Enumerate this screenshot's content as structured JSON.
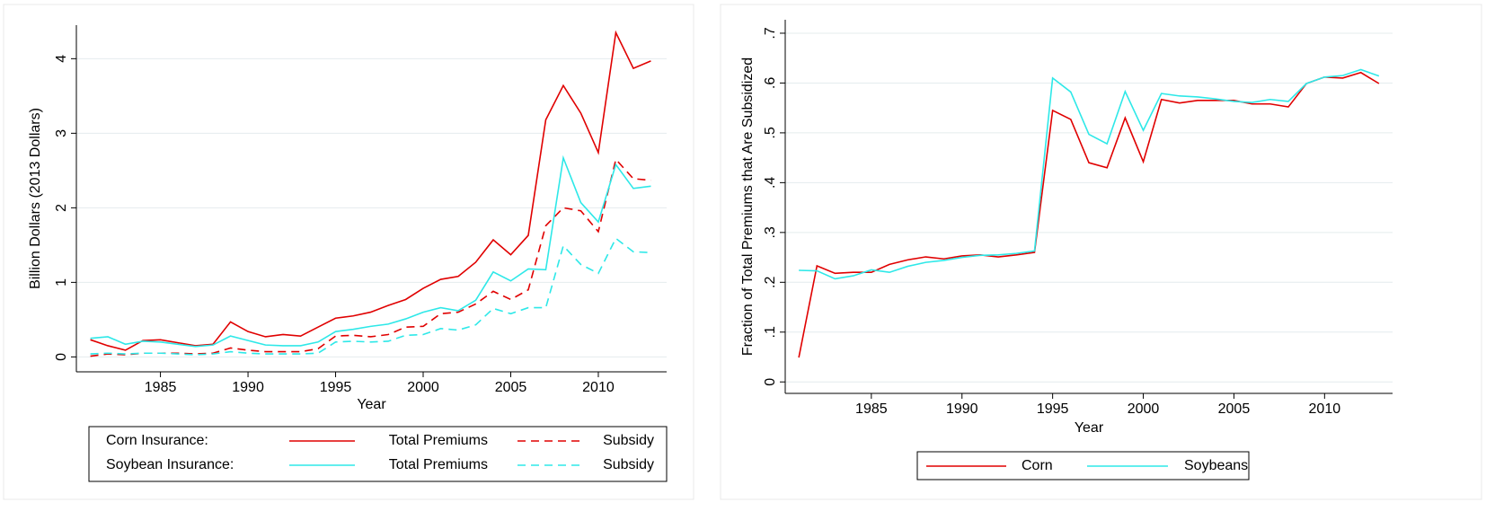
{
  "chart_data": [
    {
      "type": "line",
      "y_label": "Billion Dollars (2013 Dollars)",
      "x_label": "Year",
      "x": [
        1981,
        1982,
        1983,
        1984,
        1985,
        1986,
        1987,
        1988,
        1989,
        1990,
        1991,
        1992,
        1993,
        1994,
        1995,
        1996,
        1997,
        1998,
        1999,
        2000,
        2001,
        2002,
        2003,
        2004,
        2005,
        2006,
        2007,
        2008,
        2009,
        2010,
        2011,
        2012,
        2013
      ],
      "xlim": [
        1980.2,
        2013.9
      ],
      "xticks": [
        1985,
        1990,
        1995,
        2000,
        2005,
        2010
      ],
      "ylim": [
        -0.2,
        4.45
      ],
      "yticks": [
        0,
        1,
        2,
        3,
        4
      ],
      "grid": true,
      "groups": [
        {
          "name": "Corn Insurance:",
          "series": [
            {
              "name": "Total Premiums",
              "color": "#e00000",
              "linestyle": "solid",
              "values": [
                0.23,
                0.15,
                0.09,
                0.22,
                0.23,
                0.19,
                0.15,
                0.17,
                0.47,
                0.34,
                0.27,
                0.3,
                0.28,
                0.4,
                0.52,
                0.55,
                0.6,
                0.69,
                0.77,
                0.92,
                1.04,
                1.08,
                1.27,
                1.57,
                1.37,
                1.63,
                3.18,
                3.64,
                3.27,
                2.74,
                4.35,
                3.87,
                3.97
              ]
            },
            {
              "name": "Subsidy",
              "color": "#e00000",
              "linestyle": "dashed",
              "values": [
                0.01,
                0.04,
                0.03,
                0.05,
                0.05,
                0.05,
                0.04,
                0.05,
                0.12,
                0.09,
                0.07,
                0.07,
                0.07,
                0.11,
                0.28,
                0.29,
                0.27,
                0.3,
                0.4,
                0.41,
                0.58,
                0.6,
                0.71,
                0.88,
                0.77,
                0.9,
                1.76,
                2.0,
                1.96,
                1.68,
                2.65,
                2.39,
                2.37
              ]
            }
          ]
        },
        {
          "name": "Soybean Insurance:",
          "series": [
            {
              "name": "Total Premiums",
              "color": "#2ee8e8",
              "linestyle": "solid",
              "values": [
                0.25,
                0.27,
                0.17,
                0.21,
                0.2,
                0.17,
                0.14,
                0.16,
                0.28,
                0.22,
                0.16,
                0.15,
                0.15,
                0.2,
                0.34,
                0.37,
                0.41,
                0.44,
                0.51,
                0.6,
                0.66,
                0.62,
                0.76,
                1.14,
                1.02,
                1.18,
                1.17,
                2.67,
                2.07,
                1.81,
                2.58,
                2.26,
                2.29
              ]
            },
            {
              "name": "Subsidy",
              "color": "#2ee8e8",
              "linestyle": "dashed",
              "values": [
                0.04,
                0.05,
                0.04,
                0.05,
                0.05,
                0.04,
                0.03,
                0.04,
                0.07,
                0.05,
                0.04,
                0.04,
                0.04,
                0.05,
                0.2,
                0.21,
                0.2,
                0.21,
                0.29,
                0.3,
                0.38,
                0.36,
                0.43,
                0.65,
                0.58,
                0.66,
                0.66,
                1.49,
                1.24,
                1.12,
                1.59,
                1.41,
                1.4
              ]
            }
          ]
        }
      ]
    },
    {
      "type": "line",
      "y_label": "Fraction of Total Premiums that Are Subsidized",
      "x_label": "Year",
      "x": [
        1981,
        1982,
        1983,
        1984,
        1985,
        1986,
        1987,
        1988,
        1989,
        1990,
        1991,
        1992,
        1993,
        1994,
        1995,
        1996,
        1997,
        1998,
        1999,
        2000,
        2001,
        2002,
        2003,
        2004,
        2005,
        2006,
        2007,
        2008,
        2009,
        2010,
        2011,
        2012,
        2013
      ],
      "xlim": [
        1980.25,
        2013.75
      ],
      "xticks": [
        1985,
        1990,
        1995,
        2000,
        2005,
        2010
      ],
      "ylim": [
        -0.023,
        0.727
      ],
      "yticks": [
        0,
        {
          "value": 0.1,
          "label": ".1"
        },
        {
          "value": 0.2,
          "label": ".2"
        },
        {
          "value": 0.3,
          "label": ".3"
        },
        {
          "value": 0.4,
          "label": ".4"
        },
        {
          "value": 0.5,
          "label": ".5"
        },
        {
          "value": 0.6,
          "label": ".6"
        },
        {
          "value": 0.7,
          "label": ".7"
        }
      ],
      "grid": true,
      "series": [
        {
          "name": "Corn",
          "color": "#e00000",
          "linestyle": "solid",
          "values": [
            0.049,
            0.233,
            0.218,
            0.22,
            0.22,
            0.236,
            0.245,
            0.251,
            0.247,
            0.253,
            0.255,
            0.251,
            0.255,
            0.26,
            0.545,
            0.527,
            0.44,
            0.43,
            0.53,
            0.442,
            0.567,
            0.56,
            0.565,
            0.565,
            0.565,
            0.558,
            0.558,
            0.552,
            0.599,
            0.612,
            0.61,
            0.621,
            0.599
          ]
        },
        {
          "name": "Soybeans",
          "color": "#2ee8e8",
          "linestyle": "solid",
          "values": [
            0.224,
            0.223,
            0.207,
            0.213,
            0.225,
            0.22,
            0.232,
            0.24,
            0.244,
            0.25,
            0.254,
            0.255,
            0.258,
            0.263,
            0.61,
            0.582,
            0.497,
            0.478,
            0.583,
            0.505,
            0.579,
            0.574,
            0.572,
            0.568,
            0.563,
            0.561,
            0.567,
            0.563,
            0.599,
            0.612,
            0.615,
            0.627,
            0.614
          ]
        }
      ]
    }
  ]
}
